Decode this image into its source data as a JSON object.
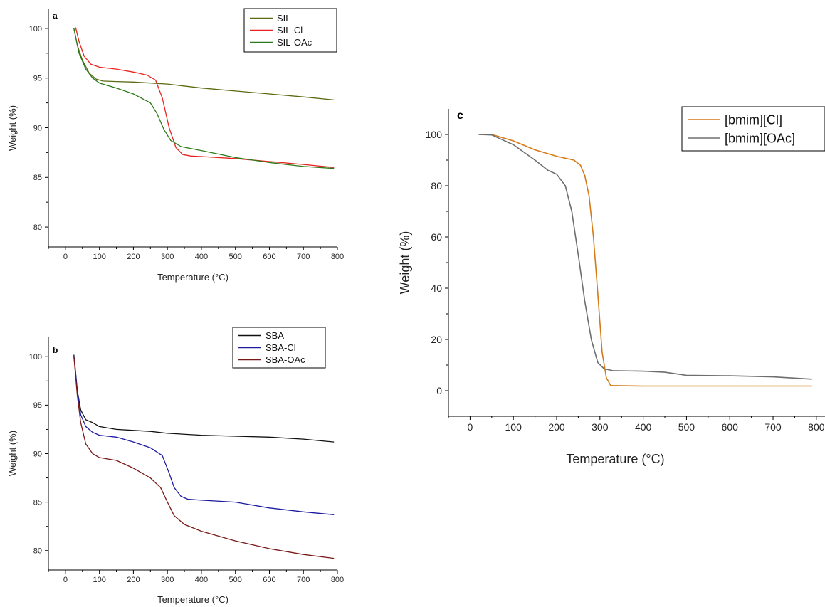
{
  "chart_data": [
    {
      "panel": "a",
      "type": "line",
      "xlabel": "Temperature (°C)",
      "ylabel": "Weight (%)",
      "xlim": [
        -50,
        800
      ],
      "ylim": [
        78,
        102
      ],
      "xticks": [
        0,
        100,
        200,
        300,
        400,
        500,
        600,
        700,
        800
      ],
      "yticks": [
        80,
        85,
        90,
        95,
        100
      ],
      "legend_position": "top-right",
      "grid": false,
      "series": [
        {
          "name": "SIL",
          "color": "#5a6b12",
          "x": [
            25,
            35,
            50,
            70,
            90,
            110,
            150,
            200,
            250,
            300,
            400,
            500,
            600,
            700,
            790
          ],
          "y": [
            100,
            98.3,
            96.8,
            95.5,
            94.9,
            94.7,
            94.65,
            94.6,
            94.5,
            94.4,
            94.0,
            93.7,
            93.4,
            93.1,
            92.8
          ]
        },
        {
          "name": "SIL-Cl",
          "color": "#e8221e",
          "x": [
            30,
            40,
            55,
            75,
            100,
            150,
            200,
            240,
            265,
            285,
            305,
            325,
            345,
            370,
            400,
            500,
            600,
            700,
            790
          ],
          "y": [
            100.1,
            98.7,
            97.2,
            96.4,
            96.1,
            95.9,
            95.6,
            95.3,
            94.8,
            93.0,
            90.0,
            88.0,
            87.3,
            87.15,
            87.1,
            86.9,
            86.6,
            86.3,
            86.0
          ]
        },
        {
          "name": "SIL-OAc",
          "color": "#2c7a19",
          "x": [
            25,
            40,
            60,
            80,
            100,
            150,
            200,
            250,
            270,
            290,
            310,
            340,
            400,
            500,
            600,
            700,
            790
          ],
          "y": [
            100,
            97.5,
            95.9,
            95.0,
            94.5,
            94.0,
            93.4,
            92.5,
            91.4,
            89.8,
            88.7,
            88.1,
            87.7,
            87.0,
            86.5,
            86.1,
            85.9
          ]
        }
      ]
    },
    {
      "panel": "b",
      "type": "line",
      "xlabel": "Temperature (°C)",
      "ylabel": "Weight (%)",
      "xlim": [
        -50,
        800
      ],
      "ylim": [
        78,
        102
      ],
      "xticks": [
        0,
        100,
        200,
        300,
        400,
        500,
        600,
        700,
        800
      ],
      "yticks": [
        80,
        85,
        90,
        95,
        100
      ],
      "legend_position": "top-right",
      "grid": false,
      "series": [
        {
          "name": "SBA",
          "color": "#111111",
          "x": [
            25,
            35,
            45,
            60,
            80,
            100,
            150,
            200,
            250,
            300,
            400,
            500,
            600,
            700,
            790
          ],
          "y": [
            100.2,
            96.5,
            94.5,
            93.5,
            93.2,
            92.8,
            92.5,
            92.4,
            92.3,
            92.1,
            91.9,
            91.8,
            91.7,
            91.5,
            91.2
          ]
        },
        {
          "name": "SBA-Cl",
          "color": "#1d1aa0",
          "x": [
            25,
            35,
            45,
            60,
            80,
            100,
            150,
            200,
            250,
            285,
            305,
            320,
            340,
            360,
            400,
            500,
            600,
            700,
            790
          ],
          "y": [
            100.1,
            96.5,
            94.0,
            92.8,
            92.2,
            91.9,
            91.7,
            91.2,
            90.6,
            89.8,
            88.0,
            86.5,
            85.6,
            85.3,
            85.2,
            85.0,
            84.4,
            84.0,
            83.7
          ]
        },
        {
          "name": "SBA-OAc",
          "color": "#7a1818",
          "x": [
            25,
            35,
            45,
            60,
            80,
            100,
            150,
            200,
            250,
            280,
            300,
            320,
            350,
            400,
            500,
            600,
            700,
            790
          ],
          "y": [
            100.0,
            96.0,
            93.2,
            91.0,
            90.0,
            89.6,
            89.3,
            88.5,
            87.5,
            86.5,
            85.0,
            83.6,
            82.7,
            82.0,
            81.0,
            80.2,
            79.6,
            79.2
          ]
        }
      ]
    },
    {
      "panel": "c",
      "type": "line",
      "xlabel": "Temperature (°C)",
      "ylabel": "Weight (%)",
      "xlim": [
        -50,
        820
      ],
      "ylim": [
        -10,
        110
      ],
      "xticks": [
        0,
        100,
        200,
        300,
        400,
        500,
        600,
        700,
        800
      ],
      "yticks": [
        0,
        20,
        40,
        60,
        80,
        100
      ],
      "legend_position": "top-right",
      "grid": false,
      "series": [
        {
          "name": "[bmim][Cl]",
          "color": "#d67a17",
          "x": [
            20,
            50,
            100,
            150,
            200,
            240,
            255,
            265,
            275,
            285,
            295,
            305,
            315,
            325,
            400,
            500,
            600,
            700,
            790
          ],
          "y": [
            100,
            100,
            97.5,
            94,
            91.5,
            90,
            88,
            84,
            76,
            60,
            38,
            15,
            5,
            2,
            1.8,
            1.8,
            1.8,
            1.8,
            1.8
          ]
        },
        {
          "name": "[bmim][OAc]",
          "color": "#6e6e6e",
          "x": [
            20,
            50,
            100,
            150,
            180,
            200,
            220,
            235,
            250,
            265,
            280,
            295,
            310,
            330,
            400,
            450,
            500,
            600,
            700,
            790
          ],
          "y": [
            100,
            99.8,
            96,
            90,
            86,
            84.5,
            80,
            70,
            53,
            35,
            20,
            11,
            8.5,
            7.8,
            7.6,
            7.2,
            6.0,
            5.8,
            5.4,
            4.5
          ]
        }
      ]
    }
  ]
}
